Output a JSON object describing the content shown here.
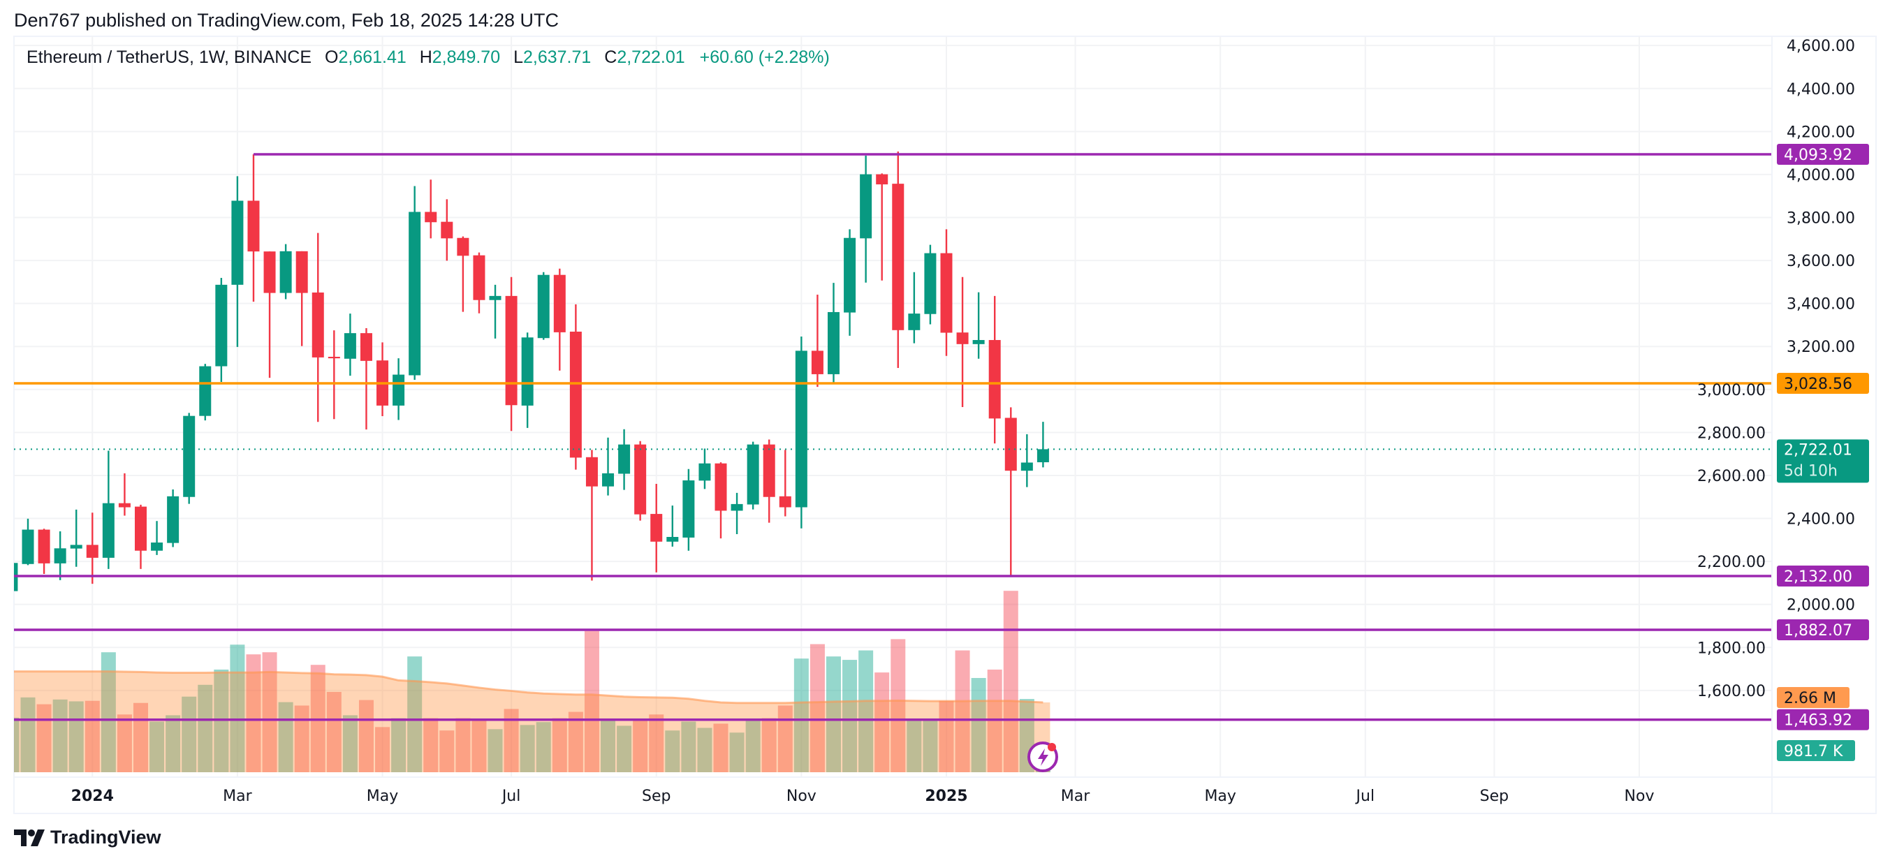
{
  "header": {
    "published": "Den767 published on TradingView.com, Feb 18, 2025 14:28 UTC"
  },
  "legend": {
    "symbol": "Ethereum / TetherUS, 1W, BINANCE",
    "o_label": "O",
    "o": "2,661.41",
    "h_label": "H",
    "h": "2,849.70",
    "l_label": "L",
    "l": "2,637.71",
    "c_label": "C",
    "c": "2,722.01",
    "change": "+60.60 (+2.28%)"
  },
  "colors": {
    "up": "#089981",
    "down": "#F23645",
    "level_purple": "#9C27B0",
    "level_orange": "#FF9800",
    "volume_ma": "#FF9A4F",
    "volume_label": "#22AB94"
  },
  "chart_data": {
    "type": "candlestick",
    "title": "Ethereum / TetherUS, 1W, BINANCE",
    "ylim": [
      1500,
      4650
    ],
    "grid": true,
    "columns": [
      "date",
      "open",
      "high",
      "low",
      "close",
      "volume_M",
      "volume_ma_M"
    ],
    "candles": [
      [
        "2023-11-27",
        2062,
        2200,
        2040,
        2193,
        2.08,
        3.84
      ],
      [
        "2023-12-04",
        2188,
        2399,
        2183,
        2348,
        2.85,
        3.84
      ],
      [
        "2023-12-11",
        2348,
        2352,
        2142,
        2191,
        2.59,
        3.84
      ],
      [
        "2023-12-18",
        2191,
        2340,
        2113,
        2261,
        2.77,
        3.84
      ],
      [
        "2023-12-25",
        2260,
        2441,
        2175,
        2277,
        2.7,
        3.84
      ],
      [
        "2024-01-01",
        2277,
        2427,
        2096,
        2217,
        2.72,
        3.84
      ],
      [
        "2024-01-08",
        2217,
        2715,
        2165,
        2471,
        4.57,
        3.84
      ],
      [
        "2024-01-15",
        2471,
        2610,
        2413,
        2452,
        2.2,
        3.83
      ],
      [
        "2024-01-22",
        2455,
        2464,
        2165,
        2250,
        2.64,
        3.82
      ],
      [
        "2024-01-29",
        2250,
        2388,
        2230,
        2288,
        1.93,
        3.8
      ],
      [
        "2024-02-05",
        2286,
        2535,
        2267,
        2503,
        2.17,
        3.79
      ],
      [
        "2024-02-12",
        2500,
        2891,
        2468,
        2877,
        2.88,
        3.79
      ],
      [
        "2024-02-19",
        2877,
        3119,
        2856,
        3108,
        3.33,
        3.79
      ],
      [
        "2024-02-26",
        3108,
        3519,
        3035,
        3487,
        3.91,
        3.8
      ],
      [
        "2024-03-04",
        3487,
        3992,
        3198,
        3878,
        4.86,
        3.8
      ],
      [
        "2024-03-11",
        3878,
        4094,
        3408,
        3642,
        4.49,
        3.8
      ],
      [
        "2024-03-18",
        3642,
        3642,
        3054,
        3449,
        4.57,
        3.82
      ],
      [
        "2024-03-25",
        3449,
        3676,
        3420,
        3643,
        2.67,
        3.8
      ],
      [
        "2024-04-01",
        3643,
        3643,
        3202,
        3449,
        2.54,
        3.78
      ],
      [
        "2024-04-08",
        3451,
        3728,
        2849,
        3149,
        4.09,
        3.77
      ],
      [
        "2024-04-15",
        3152,
        3275,
        2862,
        3145,
        3.06,
        3.73
      ],
      [
        "2024-04-22",
        3143,
        3353,
        3064,
        3262,
        2.17,
        3.72
      ],
      [
        "2024-04-29",
        3262,
        3285,
        2814,
        3133,
        2.75,
        3.7
      ],
      [
        "2024-05-06",
        3135,
        3219,
        2876,
        2925,
        1.72,
        3.64
      ],
      [
        "2024-05-13",
        2925,
        3145,
        2858,
        3069,
        2.06,
        3.5
      ],
      [
        "2024-05-20",
        3066,
        3946,
        3045,
        3826,
        4.41,
        3.47
      ],
      [
        "2024-05-27",
        3826,
        3976,
        3703,
        3778,
        2.06,
        3.43
      ],
      [
        "2024-06-03",
        3780,
        3885,
        3599,
        3703,
        1.59,
        3.38
      ],
      [
        "2024-06-10",
        3705,
        3712,
        3361,
        3622,
        2.06,
        3.3
      ],
      [
        "2024-06-17",
        3624,
        3637,
        3354,
        3416,
        2.04,
        3.22
      ],
      [
        "2024-06-24",
        3416,
        3487,
        3237,
        3435,
        1.64,
        3.15
      ],
      [
        "2024-07-01",
        3435,
        3523,
        2807,
        2927,
        2.41,
        3.1
      ],
      [
        "2024-07-08",
        2925,
        3265,
        2821,
        3242,
        1.8,
        3.04
      ],
      [
        "2024-07-15",
        3239,
        3546,
        3231,
        3533,
        1.91,
        3.0
      ],
      [
        "2024-07-22",
        3533,
        3562,
        3088,
        3266,
        2.06,
        2.98
      ],
      [
        "2024-07-29",
        3269,
        3396,
        2627,
        2683,
        2.3,
        2.96
      ],
      [
        "2024-08-05",
        2685,
        2719,
        2111,
        2549,
        5.38,
        2.96
      ],
      [
        "2024-08-12",
        2549,
        2776,
        2507,
        2610,
        2.02,
        2.92
      ],
      [
        "2024-08-19",
        2608,
        2815,
        2533,
        2744,
        1.77,
        2.88
      ],
      [
        "2024-08-26",
        2744,
        2760,
        2390,
        2419,
        1.96,
        2.86
      ],
      [
        "2024-09-02",
        2421,
        2561,
        2149,
        2292,
        2.2,
        2.85
      ],
      [
        "2024-09-09",
        2292,
        2460,
        2269,
        2314,
        1.59,
        2.84
      ],
      [
        "2024-09-16",
        2311,
        2630,
        2250,
        2577,
        1.93,
        2.8
      ],
      [
        "2024-09-23",
        2576,
        2725,
        2537,
        2656,
        1.69,
        2.72
      ],
      [
        "2024-09-30",
        2656,
        2661,
        2307,
        2436,
        1.85,
        2.66
      ],
      [
        "2024-10-07",
        2436,
        2519,
        2327,
        2467,
        1.51,
        2.64
      ],
      [
        "2024-10-14",
        2465,
        2757,
        2442,
        2744,
        1.98,
        2.64
      ],
      [
        "2024-10-21",
        2744,
        2767,
        2380,
        2500,
        2.06,
        2.64
      ],
      [
        "2024-10-28",
        2503,
        2719,
        2410,
        2452,
        2.54,
        2.64
      ],
      [
        "2024-11-04",
        2452,
        3246,
        2354,
        3180,
        4.33,
        2.66
      ],
      [
        "2024-11-11",
        3180,
        3441,
        3012,
        3071,
        4.88,
        2.67
      ],
      [
        "2024-11-18",
        3071,
        3496,
        3029,
        3360,
        4.41,
        2.69
      ],
      [
        "2024-11-25",
        3358,
        3745,
        3250,
        3705,
        4.28,
        2.7
      ],
      [
        "2024-12-02",
        3703,
        4088,
        3497,
        4001,
        4.64,
        2.72
      ],
      [
        "2024-12-09",
        4001,
        4005,
        3507,
        3954,
        3.8,
        2.72
      ],
      [
        "2024-12-16",
        3957,
        4107,
        3100,
        3276,
        5.07,
        2.73
      ],
      [
        "2024-12-23",
        3276,
        3546,
        3215,
        3353,
        2.02,
        2.72
      ],
      [
        "2024-12-30",
        3351,
        3673,
        3303,
        3634,
        1.96,
        2.71
      ],
      [
        "2025-01-06",
        3634,
        3745,
        3156,
        3264,
        2.72,
        2.71
      ],
      [
        "2025-01-13",
        3265,
        3523,
        2918,
        3211,
        4.64,
        2.71
      ],
      [
        "2025-01-20",
        3211,
        3452,
        3143,
        3230,
        3.59,
        2.72
      ],
      [
        "2025-01-27",
        3230,
        3435,
        2749,
        2865,
        3.91,
        2.72
      ],
      [
        "2025-02-03",
        2868,
        2917,
        2132,
        2622,
        6.91,
        2.72
      ],
      [
        "2025-02-10",
        2622,
        2792,
        2546,
        2660,
        2.79,
        2.69
      ],
      [
        "2025-02-17",
        2661.41,
        2849.7,
        2637.71,
        2722.01,
        0.9817,
        2.66
      ]
    ],
    "price_ticks": [
      {
        "value": 4600,
        "label": "4,600.00"
      },
      {
        "value": 4400,
        "label": "4,400.00"
      },
      {
        "value": 4200,
        "label": "4,200.00"
      },
      {
        "value": 4000,
        "label": "4,000.00"
      },
      {
        "value": 3800,
        "label": "3,800.00"
      },
      {
        "value": 3600,
        "label": "3,600.00"
      },
      {
        "value": 3400,
        "label": "3,400.00"
      },
      {
        "value": 3200,
        "label": "3,200.00"
      },
      {
        "value": 3000,
        "label": "3,000.00"
      },
      {
        "value": 2800,
        "label": "2,800.00"
      },
      {
        "value": 2600,
        "label": "2,600.00"
      },
      {
        "value": 2400,
        "label": "2,400.00"
      },
      {
        "value": 2200,
        "label": "2,200.00"
      },
      {
        "value": 2000,
        "label": "2,000.00"
      },
      {
        "value": 1800,
        "label": "1,800.00"
      },
      {
        "value": 1600,
        "label": "1,600.00"
      }
    ],
    "time_ticks": [
      {
        "label": "2024",
        "date": "2024-01-01",
        "bold": true
      },
      {
        "label": "Mar",
        "date": "2024-03-04",
        "bold": false
      },
      {
        "label": "May",
        "date": "2024-05-06",
        "bold": false
      },
      {
        "label": "Jul",
        "date": "2024-07-01",
        "bold": false
      },
      {
        "label": "Sep",
        "date": "2024-09-02",
        "bold": false
      },
      {
        "label": "Nov",
        "date": "2024-11-04",
        "bold": false
      },
      {
        "label": "2025",
        "date": "2025-01-06",
        "bold": true
      },
      {
        "label": "Mar",
        "date": "2025-03-03",
        "bold": false
      },
      {
        "label": "May",
        "date": "2025-05-05",
        "bold": false
      },
      {
        "label": "Jul",
        "date": "2025-07-07",
        "bold": false
      },
      {
        "label": "Sep",
        "date": "2025-09-01",
        "bold": false
      },
      {
        "label": "Nov",
        "date": "2025-11-03",
        "bold": false
      }
    ],
    "levels": [
      {
        "value": 4093.92,
        "label": "4,093.92",
        "color": "#9C27B0",
        "start": "2024-03-11"
      },
      {
        "value": 3028.56,
        "label": "3,028.56",
        "color": "#FF9800",
        "start": null
      },
      {
        "value": 2132.0,
        "label": "2,132.00",
        "color": "#9C27B0",
        "start": null
      },
      {
        "value": 1882.07,
        "label": "1,882.07",
        "color": "#9C27B0",
        "start": null
      },
      {
        "value": 1463.92,
        "label": "1,463.92",
        "color": "#9C27B0",
        "start": null
      }
    ],
    "last_price": {
      "value": 2722.01,
      "label": "2,722.01",
      "countdown": "5d 10h"
    },
    "volume_ma_label": "2.66 M",
    "volume_label": "981.7 K"
  },
  "footer": {
    "brand": "TradingView"
  }
}
